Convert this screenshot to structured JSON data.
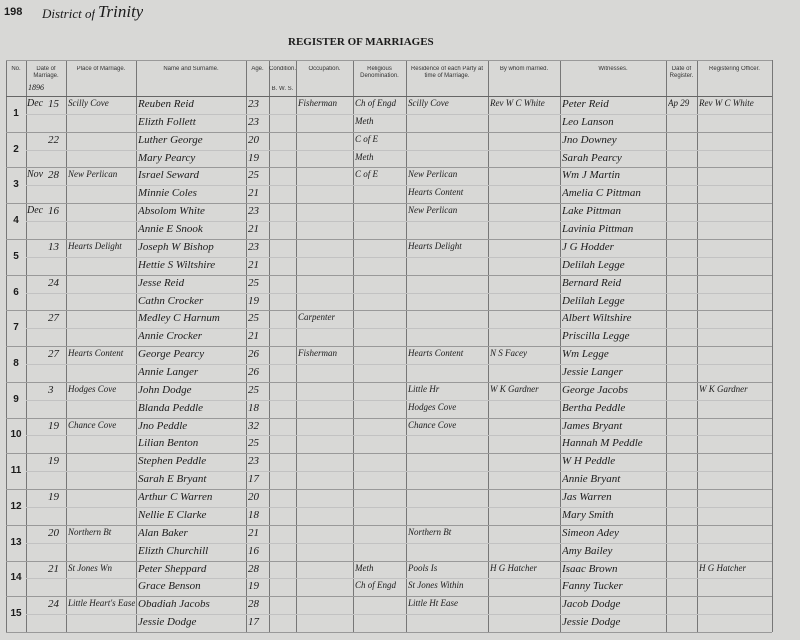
{
  "header": {
    "page_number": "198",
    "district_label": "District of",
    "district": "Trinity",
    "title": "REGISTER OF MARRIAGES",
    "year": "1896"
  },
  "columns": [
    {
      "label": "No."
    },
    {
      "label": "Date of Marriage."
    },
    {
      "label": "Place of Marriage."
    },
    {
      "label": "Name and Surname."
    },
    {
      "label": "Age."
    },
    {
      "label": "Condition.",
      "sub": "B. W. S."
    },
    {
      "label": "Occupation."
    },
    {
      "label": "Religious Denomination."
    },
    {
      "label": "Residence of each Party at time of Marriage."
    },
    {
      "label": "By whom married."
    },
    {
      "label": "Witnesses."
    },
    {
      "label": "Date of Register."
    },
    {
      "label": "Registering Officer."
    }
  ],
  "rows": [
    {
      "number": "1",
      "month": "Dec",
      "day": "15",
      "place": "Scilly Cove",
      "groom": {
        "name": "Reuben Reid",
        "age": 23,
        "occupation": "Fisherman",
        "religion": "Ch of Engd",
        "residence": "Scilly Cove"
      },
      "bride": {
        "name": "Elizth Follett",
        "age": 23,
        "religion": "Meth"
      },
      "officiant": "Rev W C White",
      "witnesses": [
        "Peter Reid",
        "Leo Lanson"
      ],
      "registered": "Ap 29",
      "registrar": "Rev W C White"
    },
    {
      "number": "2",
      "day": "22",
      "groom": {
        "name": "Luther George",
        "age": 20,
        "religion": "C of E"
      },
      "bride": {
        "name": "Mary Pearcy",
        "age": 19,
        "religion": "Meth"
      },
      "witnesses": [
        "Jno Downey",
        "Sarah Pearcy"
      ]
    },
    {
      "number": "3",
      "month": "Nov",
      "day": "28",
      "place": "New Perlican",
      "groom": {
        "name": "Israel Seward",
        "age": 25,
        "religion": "C of E",
        "residence": "New Perlican"
      },
      "bride": {
        "name": "Minnie Coles",
        "age": 21,
        "residence": "Hearts Content"
      },
      "witnesses": [
        "Wm J Martin",
        "Amelia C Pittman"
      ]
    },
    {
      "number": "4",
      "month": "Dec",
      "day": "16",
      "groom": {
        "name": "Absolom White",
        "age": 23,
        "residence": "New Perlican"
      },
      "bride": {
        "name": "Annie E Snook",
        "age": 21
      },
      "witnesses": [
        "Lake Pittman",
        "Lavinia Pittman"
      ]
    },
    {
      "number": "5",
      "day": "13",
      "place": "Hearts Delight",
      "groom": {
        "name": "Joseph W Bishop",
        "age": 23,
        "residence": "Hearts Delight"
      },
      "bride": {
        "name": "Hettie S Wiltshire",
        "age": 21
      },
      "witnesses": [
        "J G Hodder",
        "Delilah Legge"
      ]
    },
    {
      "number": "6",
      "day": "24",
      "groom": {
        "name": "Jesse Reid",
        "age": 25
      },
      "bride": {
        "name": "Cathn Crocker",
        "age": 19
      },
      "witnesses": [
        "Bernard Reid",
        "Delilah Legge"
      ]
    },
    {
      "number": "7",
      "day": "27",
      "groom": {
        "name": "Medley C Harnum",
        "age": 25,
        "occupation": "Carpenter"
      },
      "bride": {
        "name": "Annie Crocker",
        "age": 21
      },
      "witnesses": [
        "Albert Wiltshire",
        "Priscilla Legge"
      ]
    },
    {
      "number": "8",
      "day": "27",
      "place": "Hearts Content",
      "groom": {
        "name": "George Pearcy",
        "age": 26,
        "occupation": "Fisherman",
        "residence": "Hearts Content"
      },
      "bride": {
        "name": "Annie Langer",
        "age": 26
      },
      "officiant": "N S Facey",
      "witnesses": [
        "Wm Legge",
        "Jessie Langer"
      ]
    },
    {
      "number": "9",
      "day": "3",
      "place": "Hodges Cove",
      "groom": {
        "name": "John Dodge",
        "age": 25,
        "residence": "Little Hr"
      },
      "bride": {
        "name": "Blanda Peddle",
        "age": 18,
        "residence": "Hodges Cove"
      },
      "officiant": "W K Gardner",
      "witnesses": [
        "George Jacobs",
        "Bertha Peddle"
      ],
      "registrar": "W K Gardner"
    },
    {
      "number": "10",
      "day": "19",
      "place": "Chance Cove",
      "groom": {
        "name": "Jno Peddle",
        "age": 32,
        "residence": "Chance Cove"
      },
      "bride": {
        "name": "Lilian Benton",
        "age": 25
      },
      "witnesses": [
        "James Bryant",
        "Hannah M Peddle"
      ]
    },
    {
      "number": "11",
      "day": "19",
      "groom": {
        "name": "Stephen Peddle",
        "age": 23
      },
      "bride": {
        "name": "Sarah E Bryant",
        "age": 17
      },
      "witnesses": [
        "W H Peddle",
        "Annie Bryant"
      ]
    },
    {
      "number": "12",
      "day": "19",
      "groom": {
        "name": "Arthur C Warren",
        "age": 20
      },
      "bride": {
        "name": "Nellie E Clarke",
        "age": 18
      },
      "witnesses": [
        "Jas Warren",
        "Mary Smith"
      ]
    },
    {
      "number": "13",
      "day": "20",
      "place": "Northern Bt",
      "groom": {
        "name": "Alan Baker",
        "age": 21,
        "residence": "Northern Bt"
      },
      "bride": {
        "name": "Elizth Churchill",
        "age": 16
      },
      "witnesses": [
        "Simeon Adey",
        "Amy Bailey"
      ]
    },
    {
      "number": "14",
      "day": "21",
      "place": "St Jones Wn",
      "groom": {
        "name": "Peter Sheppard",
        "age": 28,
        "religion": "Meth",
        "residence": "Pools Is"
      },
      "bride": {
        "name": "Grace Benson",
        "age": 19,
        "religion": "Ch of Engd",
        "residence": "St Jones Within"
      },
      "officiant": "H G Hatcher",
      "witnesses": [
        "Isaac Brown",
        "Fanny Tucker"
      ],
      "registrar": "H G Hatcher"
    },
    {
      "number": "15",
      "day": "24",
      "place": "Little Heart's Ease",
      "groom": {
        "name": "Obadiah Jacobs",
        "age": 28,
        "residence": "Little Ht Ease"
      },
      "bride": {
        "name": "Jessie Dodge",
        "age": 17
      },
      "witnesses": [
        "Jacob Dodge",
        "Jessie Dodge"
      ]
    }
  ]
}
